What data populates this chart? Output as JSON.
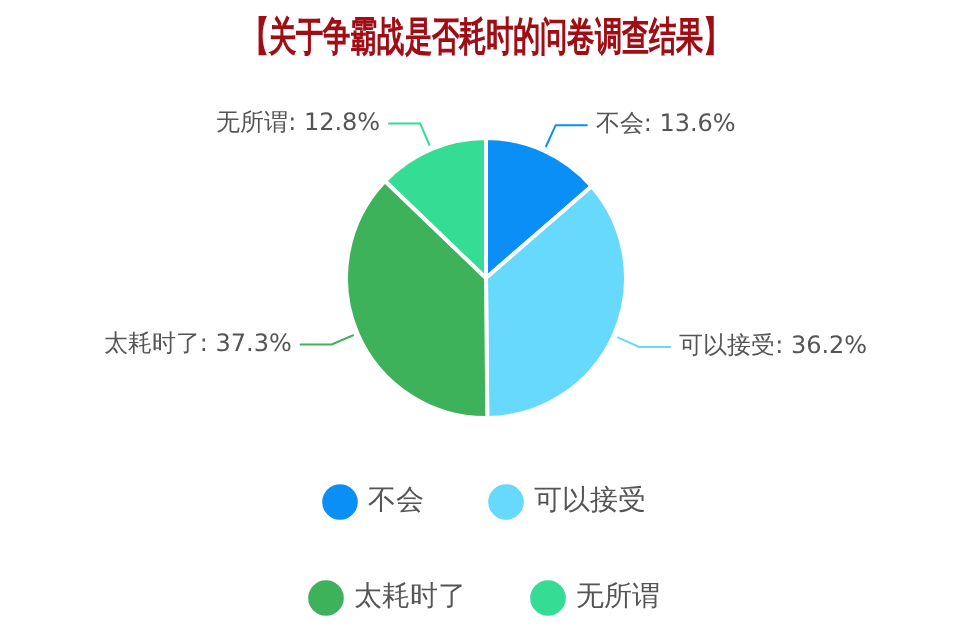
{
  "chart_data": {
    "type": "pie",
    "title": "【关于争霸战是否耗时的问卷调查结果】",
    "categories": [
      "不会",
      "可以接受",
      "太耗时了",
      "无所谓"
    ],
    "values": [
      13.6,
      36.2,
      37.3,
      12.8
    ],
    "colors": [
      "#0a8ff7",
      "#66d9fc",
      "#3db25a",
      "#35dc93"
    ],
    "value_labels": [
      "不会: 13.6%",
      "可以接受: 36.2%",
      "太耗时了: 37.3%",
      "无所谓: 12.8%"
    ],
    "legend": "bottom"
  }
}
